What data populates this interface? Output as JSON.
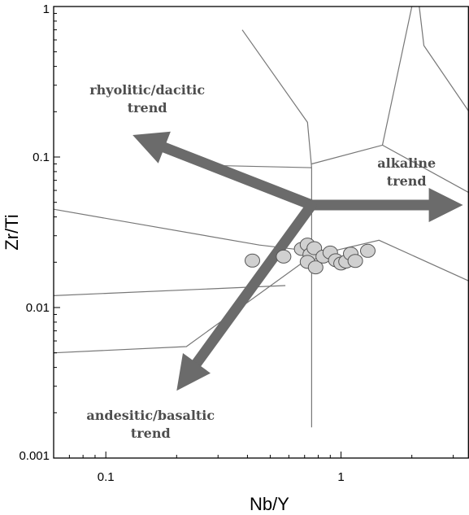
{
  "chart_data": {
    "type": "scatter",
    "xlabel": "Nb/Y",
    "ylabel": "Zr/Ti",
    "xscale": "log",
    "yscale": "log",
    "xlim": [
      0.06,
      3.5
    ],
    "ylim": [
      0.001,
      1
    ],
    "x_ticks": [
      {
        "value": 0.1,
        "label": "0.1"
      },
      {
        "value": 1,
        "label": "1"
      }
    ],
    "y_ticks": [
      {
        "value": 0.001,
        "label": "0.001"
      },
      {
        "value": 0.01,
        "label": "0.01"
      },
      {
        "value": 0.1,
        "label": "0.1"
      },
      {
        "value": 1,
        "label": "1"
      }
    ],
    "grid": false,
    "legend": "none",
    "colors": {
      "field_lines": "#777777",
      "arrows": "#6b6b6b",
      "points_fill": "#d0d0d0",
      "points_stroke": "#555555",
      "annotation_text": "#4d4d4d"
    },
    "points": [
      {
        "x": 0.42,
        "y": 0.0205
      },
      {
        "x": 0.57,
        "y": 0.0218
      },
      {
        "x": 0.68,
        "y": 0.0245
      },
      {
        "x": 0.72,
        "y": 0.0262
      },
      {
        "x": 0.74,
        "y": 0.0225
      },
      {
        "x": 0.77,
        "y": 0.0248
      },
      {
        "x": 0.72,
        "y": 0.0201
      },
      {
        "x": 0.78,
        "y": 0.0185
      },
      {
        "x": 0.84,
        "y": 0.0218
      },
      {
        "x": 0.9,
        "y": 0.0232
      },
      {
        "x": 0.95,
        "y": 0.0206
      },
      {
        "x": 1.0,
        "y": 0.0196
      },
      {
        "x": 1.05,
        "y": 0.0202
      },
      {
        "x": 1.1,
        "y": 0.0228
      },
      {
        "x": 1.15,
        "y": 0.0204
      },
      {
        "x": 1.3,
        "y": 0.0238
      }
    ],
    "field_boundaries": [
      [
        [
          0.38,
          0.7
        ],
        [
          0.72,
          0.17
        ],
        [
          0.75,
          0.085
        ]
      ],
      [
        [
          0.75,
          0.09
        ],
        [
          1.5,
          0.12
        ],
        [
          2.0,
          1.0
        ]
      ],
      [
        [
          2.15,
          1.0
        ],
        [
          2.25,
          0.55
        ],
        [
          3.5,
          0.2
        ]
      ],
      [
        [
          0.75,
          0.0016
        ],
        [
          0.75,
          0.085
        ]
      ],
      [
        [
          0.06,
          0.045
        ],
        [
          0.45,
          0.026
        ],
        [
          0.7,
          0.024
        ]
      ],
      [
        [
          0.06,
          0.012
        ],
        [
          0.58,
          0.014
        ]
      ],
      [
        [
          0.06,
          0.005
        ],
        [
          0.22,
          0.0055
        ],
        [
          0.75,
          0.022
        ]
      ],
      [
        [
          0.75,
          0.022
        ],
        [
          1.45,
          0.028
        ],
        [
          3.5,
          0.015
        ]
      ],
      [
        [
          0.28,
          0.088
        ],
        [
          0.75,
          0.085
        ]
      ],
      [
        [
          1.5,
          0.12
        ],
        [
          3.5,
          0.058
        ]
      ]
    ],
    "trend_arrows": [
      {
        "name": "rhyolitic/dacitic",
        "from": [
          0.75,
          0.048
        ],
        "to": [
          0.13,
          0.14
        ]
      },
      {
        "name": "alkaline",
        "from": [
          0.75,
          0.048
        ],
        "to": [
          3.3,
          0.048
        ]
      },
      {
        "name": "andesitic/basaltic",
        "from": [
          0.75,
          0.048
        ],
        "to": [
          0.2,
          0.0028
        ]
      }
    ],
    "annotations": [
      {
        "lines": [
          "rhyolitic/dacitic",
          "trend"
        ],
        "x": 0.15,
        "y": 0.26
      },
      {
        "lines": [
          "alkaline",
          "trend"
        ],
        "x": 1.9,
        "y": 0.085
      },
      {
        "lines": [
          "andesitic/basaltic",
          "trend"
        ],
        "x": 0.155,
        "y": 0.0018
      }
    ]
  }
}
